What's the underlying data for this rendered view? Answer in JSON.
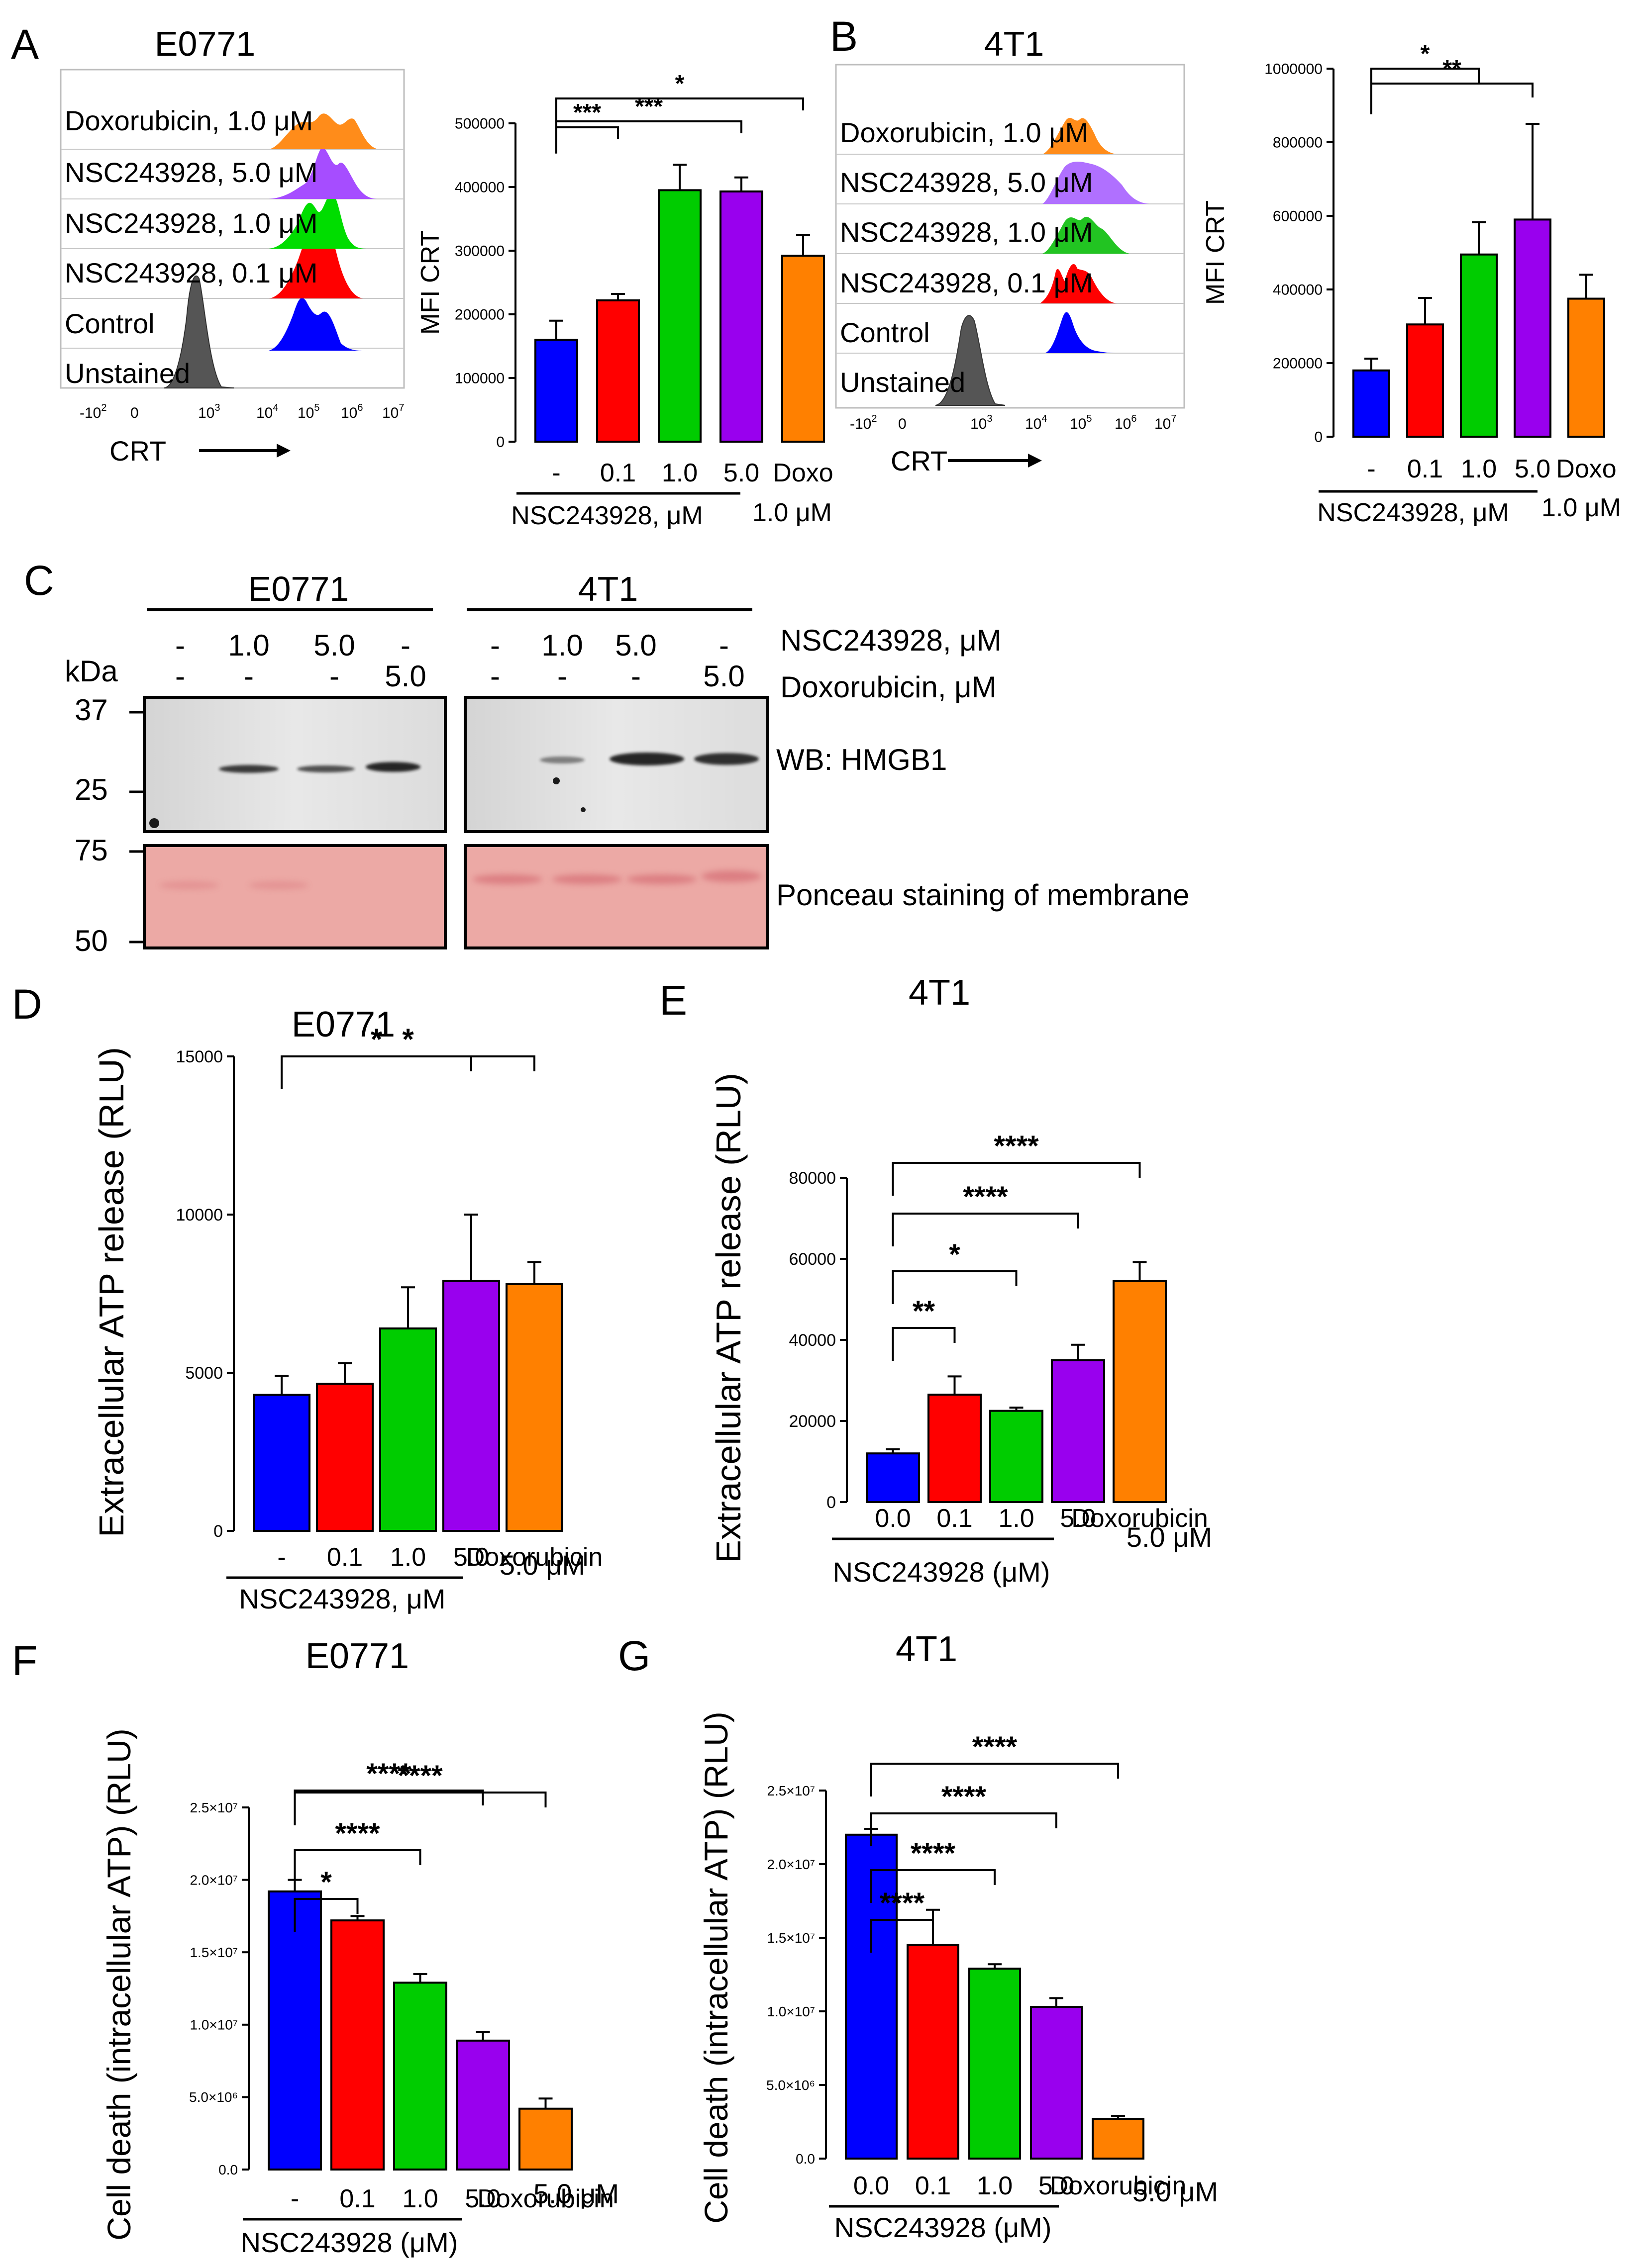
{
  "colors": {
    "control": "#0000FF",
    "nsc_0_1": "#FF0000",
    "nsc_1_0": "#00CC00",
    "nsc_5_0": "#9900EE",
    "doxo": "#FF8000",
    "unstained": "#555555",
    "ponceau": "#EBA7A3"
  },
  "panel_a_hist": {
    "letter": "A",
    "title": "E0771",
    "rows": [
      "Doxorubicin, 1.0 μM",
      "NSC243928, 5.0 μM",
      "NSC243928, 1.0 μM",
      "NSC243928, 0.1 μM",
      "Control",
      "Unstained"
    ],
    "ticks": [
      "-10",
      "0",
      "10",
      "10",
      "10",
      "10",
      "10"
    ],
    "tick_exps": [
      "2",
      "",
      "3",
      "4",
      "5",
      "6",
      "7"
    ],
    "xlabel": "CRT"
  },
  "panel_b_hist": {
    "letter": "B",
    "title": "4T1",
    "rows": [
      "Doxorubicin, 1.0 μM",
      "NSC243928, 5.0 μM",
      "NSC243928, 1.0 μM",
      "NSC243928, 0.1 μM",
      "Control",
      "Unstained"
    ],
    "ticks": [
      "-10",
      "0",
      "10",
      "10",
      "10",
      "10",
      "10"
    ],
    "tick_exps": [
      "2",
      "",
      "3",
      "4",
      "5",
      "6",
      "7"
    ],
    "xlabel": "CRT"
  },
  "panel_c": {
    "letter": "C",
    "groups": [
      "E0771",
      "4T1"
    ],
    "kda_label": "kDa",
    "row1_label": "NSC243928, μM",
    "row2_label": "Doxorubicin, μM",
    "row1": [
      "-",
      "1.0",
      "5.0",
      "-"
    ],
    "row2": [
      "-",
      "-",
      "-",
      "5.0"
    ],
    "markers_top": [
      "37",
      "25"
    ],
    "markers_bottom": [
      "75",
      "50"
    ],
    "wb_label": "WB: HMGB1",
    "ponceau_label": "Ponceau staining of membrane"
  },
  "chart_data": [
    {
      "id": "A-bar",
      "type": "bar",
      "title": "",
      "ylabel": "MFI CRT",
      "xlabel": "NSC243928, μM",
      "categories": [
        "-",
        "0.1",
        "1.0",
        "5.0",
        "Doxo"
      ],
      "extra_label": "1.0 μM",
      "values": [
        160000,
        222000,
        395000,
        393000,
        292000
      ],
      "errors": [
        30000,
        10000,
        40000,
        22000,
        33000
      ],
      "ylim": [
        0,
        500000
      ],
      "yticks": [
        "0",
        "100000",
        "200000",
        "300000",
        "400000",
        "500000"
      ],
      "significance": [
        {
          "from": 0,
          "to": 1,
          "label": "***"
        },
        {
          "from": 0,
          "to": 3,
          "label": "***"
        },
        {
          "from": 0,
          "to": 4,
          "label": "*"
        }
      ]
    },
    {
      "id": "B-bar",
      "type": "bar",
      "title": "",
      "ylabel": "MFI CRT",
      "xlabel": "NSC243928, μM",
      "categories": [
        "-",
        "0.1",
        "1.0",
        "5.0",
        "Doxo"
      ],
      "extra_label": "1.0 μM",
      "values": [
        180000,
        305000,
        495000,
        590000,
        375000
      ],
      "errors": [
        32000,
        72000,
        88000,
        260000,
        65000
      ],
      "ylim": [
        0,
        1000000
      ],
      "yticks": [
        "0",
        "200000",
        "400000",
        "600000",
        "800000",
        "1000000"
      ],
      "significance": [
        {
          "from": 0,
          "to": 2,
          "label": "*"
        },
        {
          "from": 0,
          "to": 3,
          "label": "**"
        }
      ]
    },
    {
      "id": "D",
      "type": "bar",
      "title": "E0771",
      "ylabel": "Extracellular ATP release (RLU)",
      "xlabel": "NSC243928, μM",
      "categories": [
        "-",
        "0.1",
        "1.0",
        "5.0",
        "Doxorubicin"
      ],
      "extra_label": "5.0 μM",
      "values": [
        4300,
        4650,
        6400,
        7900,
        7800
      ],
      "errors": [
        600,
        650,
        1300,
        2100,
        700
      ],
      "ylim": [
        0,
        15000
      ],
      "yticks": [
        "0",
        "5000",
        "10000",
        "15000"
      ],
      "significance": [
        {
          "from": 0,
          "to": 3,
          "label": "*"
        },
        {
          "from": 0,
          "to": 4,
          "label": "*"
        }
      ]
    },
    {
      "id": "E",
      "type": "bar",
      "title": "4T1",
      "ylabel": "Extracellular ATP release (RLU)",
      "xlabel": "NSC243928 (μM)",
      "categories": [
        "0.0",
        "0.1",
        "1.0",
        "5.0",
        "Doxorubicin"
      ],
      "extra_label": "5.0 μM",
      "values": [
        12000,
        26500,
        22500,
        35000,
        54500
      ],
      "errors": [
        1000,
        4500,
        800,
        3800,
        4700
      ],
      "ylim": [
        0,
        80000
      ],
      "yticks": [
        "0",
        "20000",
        "40000",
        "60000",
        "80000"
      ],
      "significance": [
        {
          "from": 0,
          "to": 1,
          "label": "**"
        },
        {
          "from": 0,
          "to": 2,
          "label": "*"
        },
        {
          "from": 0,
          "to": 3,
          "label": "****"
        },
        {
          "from": 0,
          "to": 4,
          "label": "****"
        }
      ]
    },
    {
      "id": "F",
      "type": "bar",
      "title": "E0771",
      "ylabel": "Cell death (intracellular ATP) (RLU)",
      "xlabel": "NSC243928 (μM)",
      "categories": [
        "-",
        "0.1",
        "1.0",
        "5.0",
        "Doxorubicin"
      ],
      "extra_label": "5.0 μM",
      "values": [
        19200000,
        17200000,
        12900000,
        8900000,
        4200000
      ],
      "errors": [
        800000,
        300000,
        600000,
        600000,
        700000
      ],
      "ylim": [
        0,
        25000000
      ],
      "yticks": [
        "0.0",
        "5.0×10⁶",
        "1.0×10⁷",
        "1.5×10⁷",
        "2.0×10⁷",
        "2.5×10⁷"
      ],
      "significance": [
        {
          "from": 0,
          "to": 1,
          "label": "*"
        },
        {
          "from": 0,
          "to": 2,
          "label": "****"
        },
        {
          "from": 0,
          "to": 3,
          "label": "****"
        },
        {
          "from": 0,
          "to": 4,
          "label": "****"
        }
      ]
    },
    {
      "id": "G",
      "type": "bar",
      "title": "4T1",
      "ylabel": "Cell death (intracellular ATP) (RLU)",
      "xlabel": "NSC243928 (μM)",
      "categories": [
        "0.0",
        "0.1",
        "1.0",
        "5.0",
        "Doxorubicin"
      ],
      "extra_label": "5.0 μM",
      "values": [
        22000000,
        14500000,
        12900000,
        10300000,
        2700000
      ],
      "errors": [
        400000,
        2400000,
        300000,
        600000,
        200000
      ],
      "ylim": [
        0,
        25000000
      ],
      "yticks": [
        "0.0",
        "5.0×10⁶",
        "1.0×10⁷",
        "1.5×10⁷",
        "2.0×10⁷",
        "2.5×10⁷"
      ],
      "significance": [
        {
          "from": 0,
          "to": 1,
          "label": "****"
        },
        {
          "from": 0,
          "to": 2,
          "label": "****"
        },
        {
          "from": 0,
          "to": 3,
          "label": "****"
        },
        {
          "from": 0,
          "to": 4,
          "label": "****"
        }
      ]
    }
  ],
  "panel_letters": [
    "D",
    "E",
    "F",
    "G"
  ]
}
